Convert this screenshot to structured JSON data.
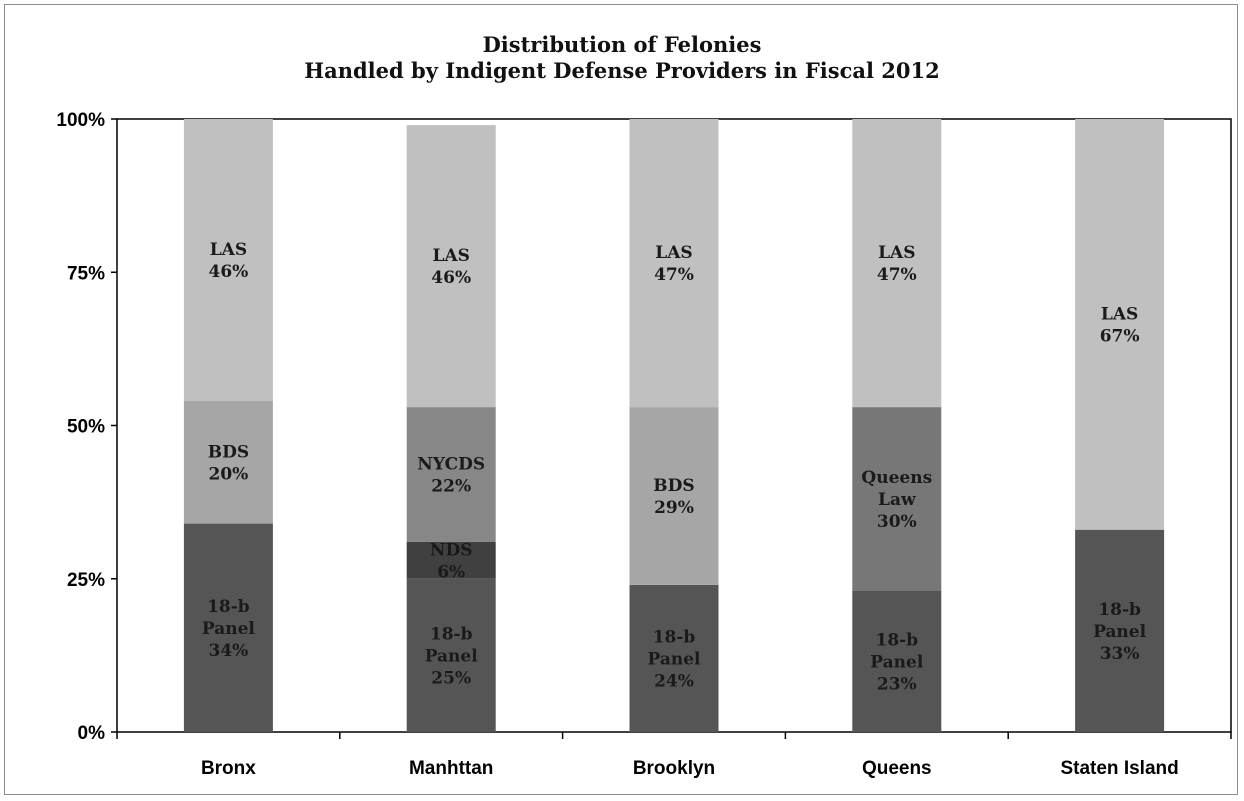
{
  "chart_data": {
    "type": "bar",
    "stacked": true,
    "title": "Distribution of Felonies",
    "subtitle": "Handled by Indigent Defense Providers in Fiscal 2012",
    "xlabel": "",
    "ylabel": "",
    "ylim": [
      0,
      100
    ],
    "y_ticks": [
      "0%",
      "25%",
      "50%",
      "75%",
      "100%"
    ],
    "y_tick_values": [
      0,
      25,
      50,
      75,
      100
    ],
    "grid": false,
    "legend": "none",
    "categories": [
      "Bronx",
      "Manhttan",
      "Brooklyn",
      "Queens",
      "Staten Island"
    ],
    "bars": [
      {
        "category": "Bronx",
        "segments": [
          {
            "label": [
              "18-b",
              "Panel",
              "34%"
            ],
            "value": 34,
            "color": "#555555"
          },
          {
            "label": [
              "BDS",
              "20%"
            ],
            "value": 20,
            "color": "#a6a6a6"
          },
          {
            "label": [
              "LAS",
              "46%"
            ],
            "value": 46,
            "color": "#c0c0c0"
          }
        ]
      },
      {
        "category": "Manhttan",
        "segments": [
          {
            "label": [
              "18-b",
              "Panel",
              "25%"
            ],
            "value": 25,
            "color": "#555555"
          },
          {
            "label": [
              "NDS",
              "6%"
            ],
            "value": 6,
            "color": "#404040"
          },
          {
            "label": [
              "NYCDS",
              "22%"
            ],
            "value": 22,
            "color": "#878787"
          },
          {
            "label": [
              "LAS",
              "46%"
            ],
            "value": 46,
            "color": "#c0c0c0"
          }
        ]
      },
      {
        "category": "Brooklyn",
        "segments": [
          {
            "label": [
              "18-b",
              "Panel",
              "24%"
            ],
            "value": 24,
            "color": "#555555"
          },
          {
            "label": [
              "BDS",
              "29%"
            ],
            "value": 29,
            "color": "#a6a6a6"
          },
          {
            "label": [
              "LAS",
              "47%"
            ],
            "value": 47,
            "color": "#c0c0c0"
          }
        ]
      },
      {
        "category": "Queens",
        "segments": [
          {
            "label": [
              "18-b",
              "Panel",
              "23%"
            ],
            "value": 23,
            "color": "#555555"
          },
          {
            "label": [
              "Queens",
              "Law",
              "30%"
            ],
            "value": 30,
            "color": "#777777"
          },
          {
            "label": [
              "LAS",
              "47%"
            ],
            "value": 47,
            "color": "#c0c0c0"
          }
        ]
      },
      {
        "category": "Staten Island",
        "segments": [
          {
            "label": [
              "18-b",
              "Panel",
              "33%"
            ],
            "value": 33,
            "color": "#555555"
          },
          {
            "label": [
              "LAS",
              "67%"
            ],
            "value": 67,
            "color": "#c0c0c0"
          }
        ]
      }
    ]
  }
}
